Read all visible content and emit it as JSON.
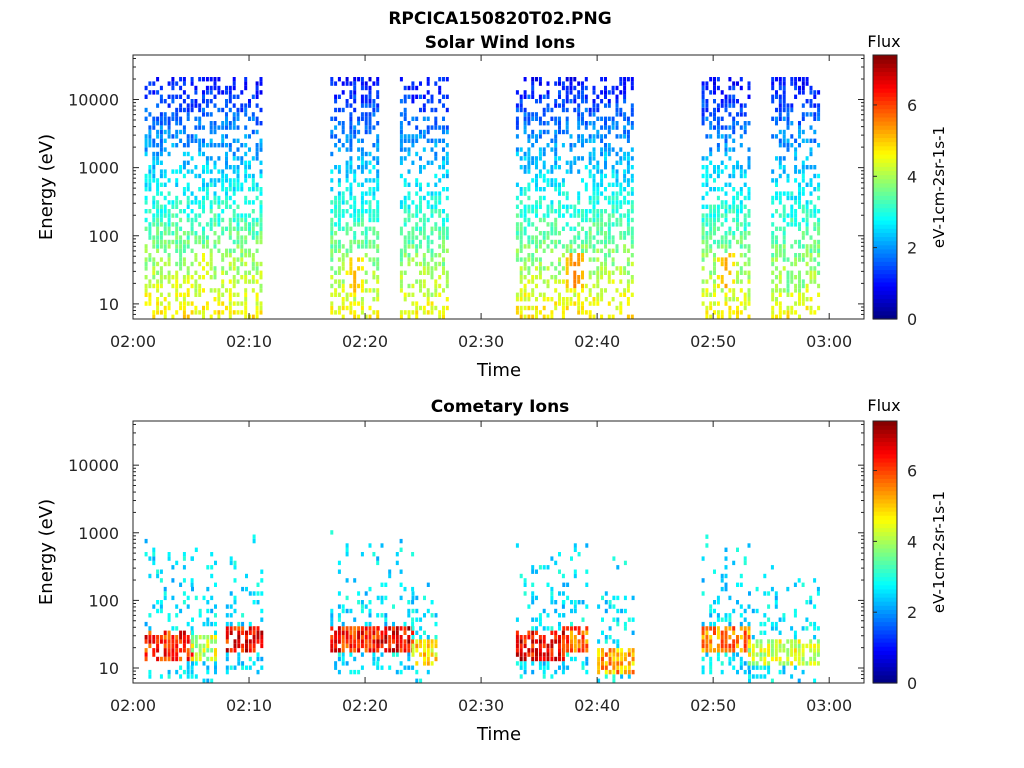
{
  "figure": {
    "title": "RPCICA150820T02.PNG"
  },
  "chart_data": [
    {
      "type": "heatmap",
      "title": "Solar Wind Ions",
      "xlabel": "Time",
      "ylabel": "Energy (eV)",
      "y_scale": "log",
      "x_ticks": [
        "02:00",
        "02:10",
        "02:20",
        "02:30",
        "02:40",
        "02:50",
        "03:00"
      ],
      "y_ticks": [
        "10",
        "100",
        "1000",
        "10000"
      ],
      "xlim": [
        "02:00",
        "03:03"
      ],
      "ylim": [
        6,
        45000
      ],
      "colorbar": {
        "title": "Flux",
        "label": "eV-1cm-2sr-1s-1",
        "ticks": [
          "0",
          "2",
          "4",
          "6"
        ],
        "range": [
          0,
          7.4
        ]
      },
      "blocks": [
        {
          "start": "02:01",
          "end": "02:11",
          "base_min": 1.0,
          "base_max": 4.5,
          "hot_energy": 30,
          "hot_level": 4.6,
          "low_level": 3.0
        },
        {
          "start": "02:17",
          "end": "02:21",
          "base_min": 1.0,
          "base_max": 4.4,
          "hot_energy": 25,
          "hot_level": 5.2,
          "low_level": 3.0
        },
        {
          "start": "02:23",
          "end": "02:27",
          "base_min": 1.0,
          "base_max": 4.4,
          "hot_energy": 20,
          "hot_level": 4.3,
          "low_level": 3.0
        },
        {
          "start": "02:33",
          "end": "02:43",
          "base_min": 1.0,
          "base_max": 4.5,
          "hot_energy": 28,
          "hot_level": 5.6,
          "low_level": 3.0
        },
        {
          "start": "02:49",
          "end": "02:53",
          "base_min": 1.0,
          "base_max": 4.4,
          "hot_energy": 30,
          "hot_level": 5.3,
          "low_level": 3.0
        },
        {
          "start": "02:55",
          "end": "02:59",
          "base_min": 1.0,
          "base_max": 4.4,
          "hot_energy": 25,
          "hot_level": 4.0,
          "low_level": 3.0
        }
      ]
    },
    {
      "type": "heatmap",
      "title": "Cometary Ions",
      "xlabel": "Time",
      "ylabel": "Energy (eV)",
      "y_scale": "log",
      "x_ticks": [
        "02:00",
        "02:10",
        "02:20",
        "02:30",
        "02:40",
        "02:50",
        "03:00"
      ],
      "y_ticks": [
        "10",
        "100",
        "1000",
        "10000"
      ],
      "xlim": [
        "02:00",
        "03:03"
      ],
      "ylim": [
        6,
        45000
      ],
      "colorbar": {
        "title": "Flux",
        "label": "eV-1cm-2sr-1s-1",
        "ticks": [
          "0",
          "2",
          "4",
          "6"
        ],
        "range": [
          0,
          7.4
        ]
      },
      "blocks": [
        {
          "start": "02:01",
          "end": "02:05",
          "peak_energy": 20,
          "peak_level": 7.0
        },
        {
          "start": "02:05",
          "end": "02:07",
          "peak_energy": 18,
          "peak_level": 5.0
        },
        {
          "start": "02:08",
          "end": "02:11",
          "peak_energy": 25,
          "peak_level": 7.2
        },
        {
          "start": "02:17",
          "end": "02:21",
          "peak_energy": 25,
          "peak_level": 7.0
        },
        {
          "start": "02:21",
          "end": "02:24",
          "peak_energy": 25,
          "peak_level": 7.3
        },
        {
          "start": "02:24",
          "end": "02:26",
          "peak_energy": 15,
          "peak_level": 5.5
        },
        {
          "start": "02:33",
          "end": "02:37",
          "peak_energy": 20,
          "peak_level": 7.3
        },
        {
          "start": "02:37",
          "end": "02:39",
          "peak_energy": 25,
          "peak_level": 6.5
        },
        {
          "start": "02:40",
          "end": "02:43",
          "peak_energy": 12,
          "peak_level": 6.0
        },
        {
          "start": "02:49",
          "end": "02:53",
          "peak_energy": 25,
          "peak_level": 6.3
        },
        {
          "start": "02:53",
          "end": "02:59",
          "peak_energy": 15,
          "peak_level": 5.0
        }
      ]
    }
  ]
}
